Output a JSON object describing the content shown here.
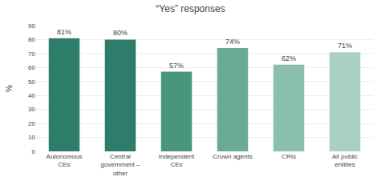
{
  "chart_data": {
    "type": "bar",
    "title": "“Yes” responses",
    "categories": [
      "Autonomous\nCEs",
      "Central\ngovernment –\nother",
      "Independent\nCEs",
      "Crown agents",
      "CRIs",
      "All public\nentities"
    ],
    "values": [
      81,
      80,
      57,
      74,
      62,
      71
    ],
    "value_labels": [
      "81%",
      "80%",
      "57%",
      "74%",
      "62%",
      "71%"
    ],
    "data_labels": true,
    "colors": [
      "#2e7d6b",
      "#2e7d6b",
      "#4a957e",
      "#6aab96",
      "#8bbfb0",
      "#a8d0c5"
    ],
    "ylabel": "%",
    "ylim": [
      0,
      90
    ],
    "yticks": [
      0,
      10,
      20,
      30,
      40,
      50,
      60,
      70,
      80,
      90
    ],
    "grid": true
  }
}
